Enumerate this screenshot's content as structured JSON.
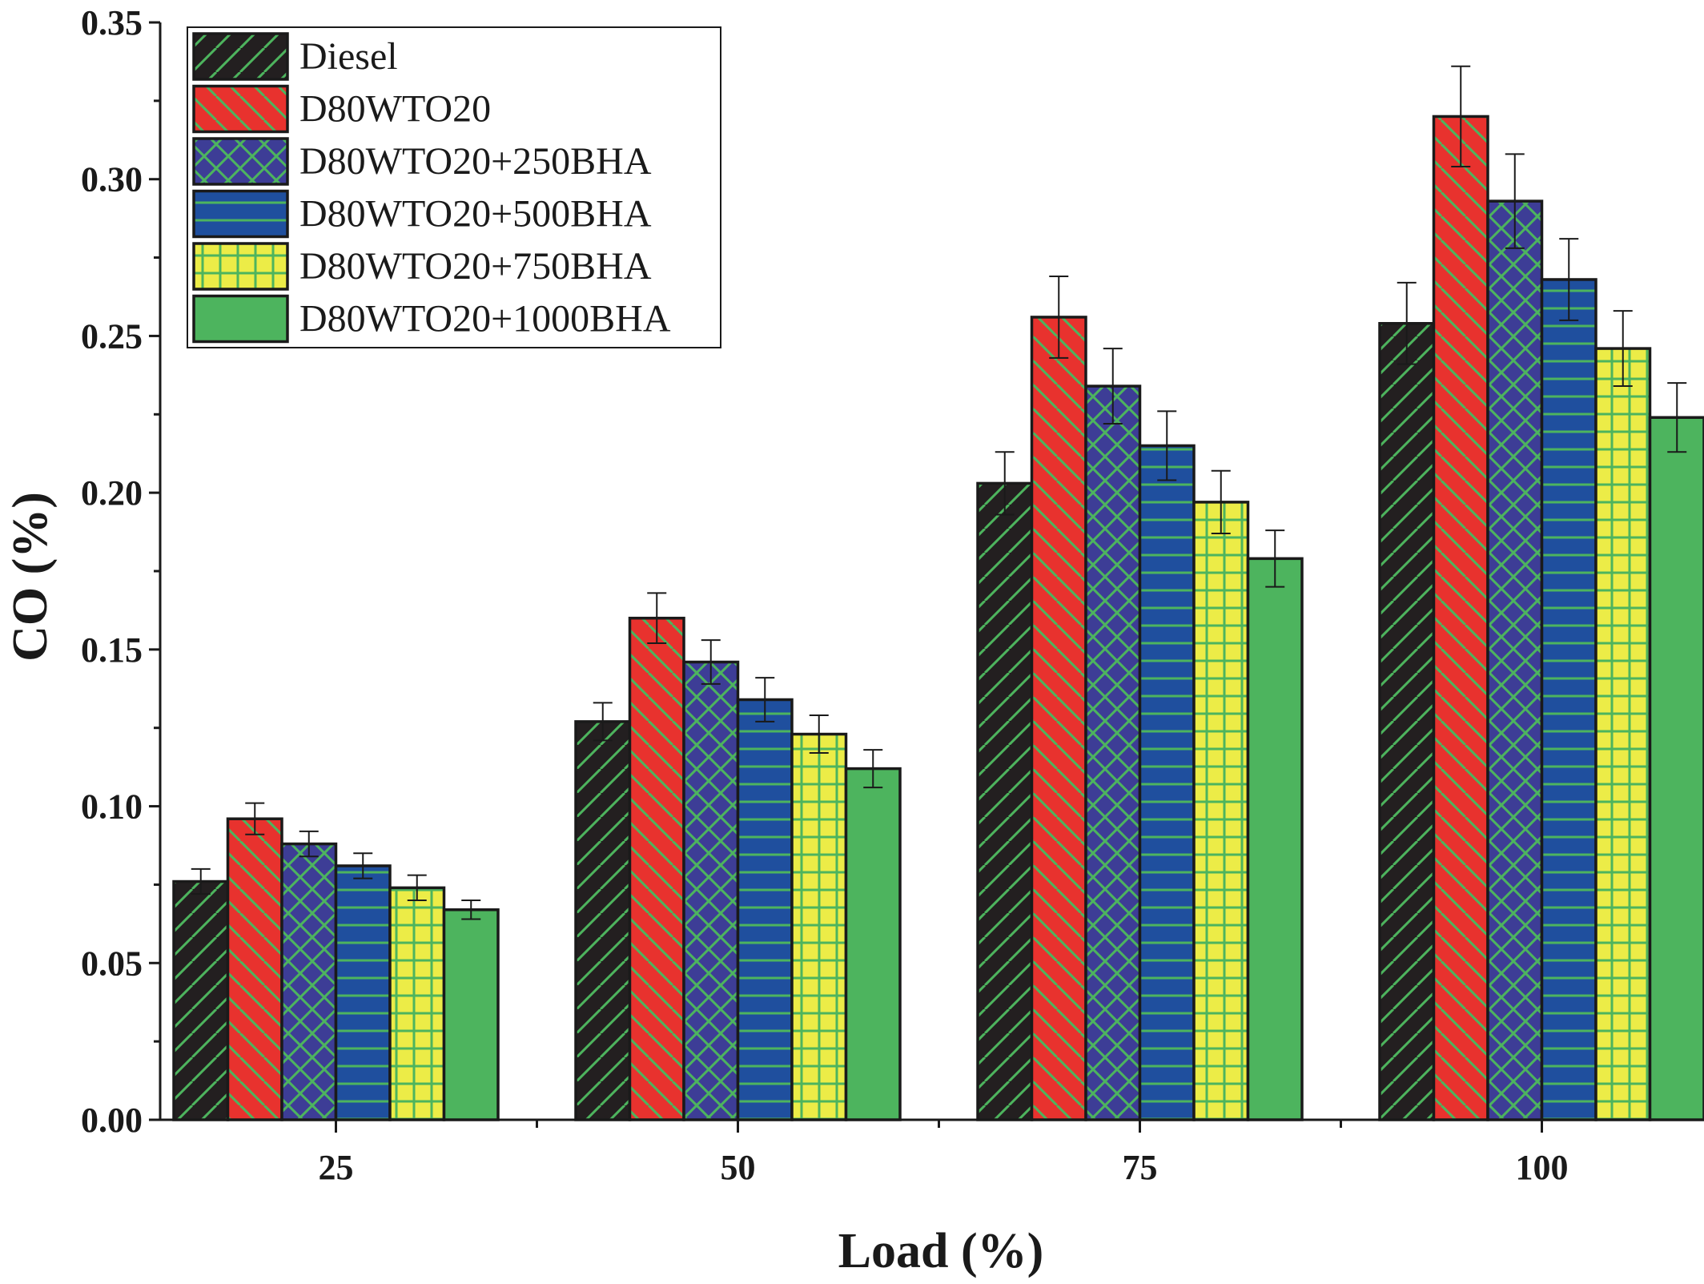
{
  "chart_data": {
    "type": "bar",
    "xlabel": "Load (%)",
    "ylabel": "CO (%)",
    "categories": [
      "25",
      "50",
      "75",
      "100"
    ],
    "ylim": [
      0,
      0.35
    ],
    "yticks": [
      "0.00",
      "0.05",
      "0.10",
      "0.15",
      "0.20",
      "0.25",
      "0.30",
      "0.35"
    ],
    "yticks_values": [
      0,
      0.05,
      0.1,
      0.15,
      0.2,
      0.25,
      0.3,
      0.35
    ],
    "legend_position": "top-left",
    "grid": false,
    "error_bars": true,
    "series": [
      {
        "name": "Diesel",
        "color": "#231f20",
        "pattern": "diagonal-up",
        "values": [
          0.076,
          0.127,
          0.203,
          0.254
        ],
        "errors": [
          0.004,
          0.006,
          0.01,
          0.013
        ]
      },
      {
        "name": "D80WTO20",
        "color": "#e8322e",
        "pattern": "diagonal-down",
        "values": [
          0.096,
          0.16,
          0.256,
          0.32
        ],
        "errors": [
          0.005,
          0.008,
          0.013,
          0.016
        ]
      },
      {
        "name": "D80WTO20+250BHA",
        "color": "#3d3d96",
        "pattern": "crosshatch-diagonal",
        "values": [
          0.088,
          0.146,
          0.234,
          0.293
        ],
        "errors": [
          0.004,
          0.007,
          0.012,
          0.015
        ]
      },
      {
        "name": "D80WTO20+500BHA",
        "color": "#1f4f9e",
        "pattern": "horizontal",
        "values": [
          0.081,
          0.134,
          0.215,
          0.268
        ],
        "errors": [
          0.004,
          0.007,
          0.011,
          0.013
        ]
      },
      {
        "name": "D80WTO20+750BHA",
        "color": "#ecec47",
        "pattern": "grid",
        "values": [
          0.074,
          0.123,
          0.197,
          0.246
        ],
        "errors": [
          0.004,
          0.006,
          0.01,
          0.012
        ]
      },
      {
        "name": "D80WTO20+1000BHA",
        "color": "#4db45e",
        "pattern": "solid",
        "values": [
          0.067,
          0.112,
          0.179,
          0.224
        ],
        "errors": [
          0.003,
          0.006,
          0.009,
          0.011
        ]
      }
    ]
  },
  "colors": {
    "pattern_line": "#4db45e",
    "axis": "#1a1a1a"
  }
}
